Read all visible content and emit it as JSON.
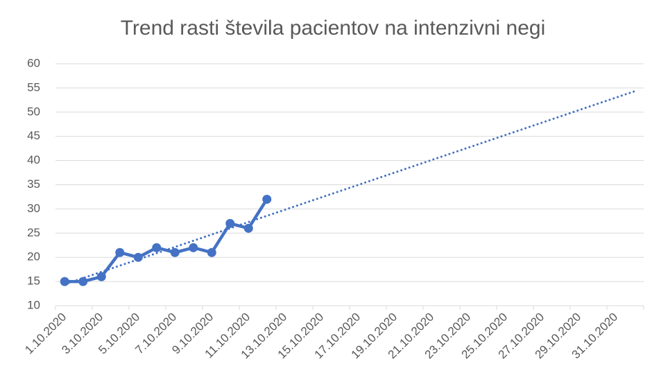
{
  "chart_data": {
    "type": "line",
    "title": "Trend rasti števila pacientov na intenzivni negi",
    "categories": [
      "1.10.2020",
      null,
      "3.10.2020",
      null,
      "5.10.2020",
      null,
      "7.10.2020",
      null,
      "9.10.2020",
      null,
      "11.10.2020",
      null,
      "13.10.2020",
      null,
      "15.10.2020",
      null,
      "17.10.2020",
      null,
      "19.10.2020",
      null,
      "21.10.2020",
      null,
      "23.10.2020",
      null,
      "25.10.2020",
      null,
      "27.10.2020",
      null,
      "29.10.2020",
      null,
      "31.10.2020",
      null
    ],
    "values": [
      15,
      15,
      16,
      21,
      20,
      22,
      21,
      22,
      21,
      27,
      26,
      32,
      null,
      null,
      null,
      null,
      null,
      null,
      null,
      null,
      null,
      null,
      null,
      null,
      null,
      null,
      null,
      null,
      null,
      null,
      null,
      null
    ],
    "color": "#4472c4",
    "trendline": "linear",
    "ylim": [
      10,
      60
    ],
    "yticks": [
      10,
      15,
      20,
      25,
      30,
      35,
      40,
      45,
      50,
      55,
      60
    ],
    "grid": true
  }
}
